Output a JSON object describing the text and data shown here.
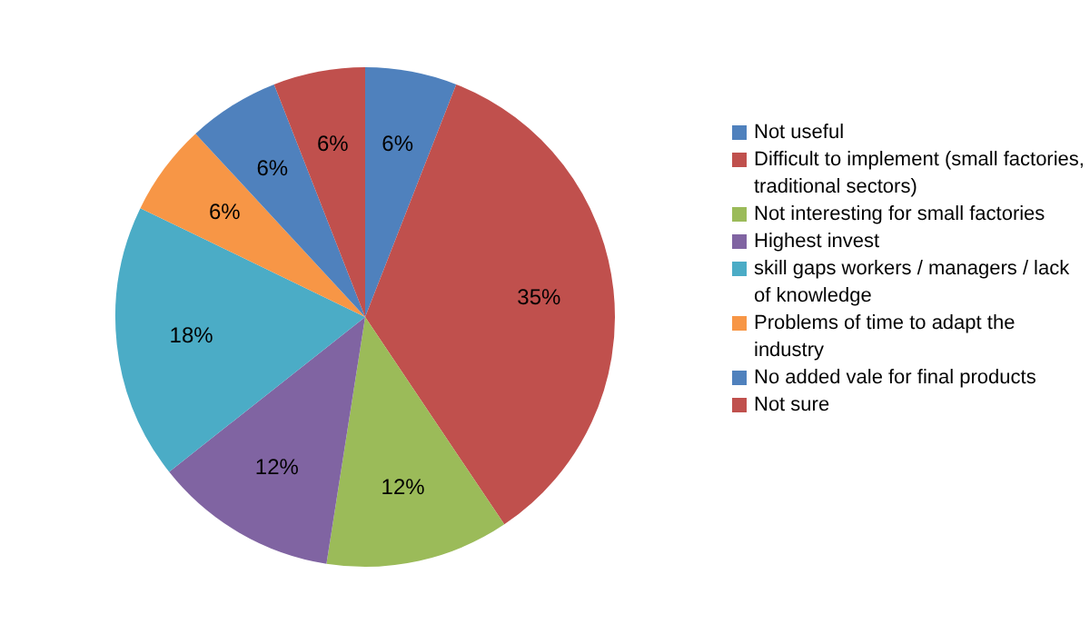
{
  "chart_data": {
    "type": "pie",
    "categories": [
      "Not useful",
      "Difficult to implement (small factories, traditional sectors)",
      "Not interesting for small factories",
      "Highest invest",
      "skill gaps workers / managers / lack of knowledge",
      "Problems of time to adapt the industry",
      "No added vale for final products",
      "Not sure"
    ],
    "values": [
      6,
      35,
      12,
      12,
      18,
      6,
      6,
      6
    ],
    "value_labels": [
      "6%",
      "35%",
      "12%",
      "12%",
      "18%",
      "6%",
      "6%",
      "6%"
    ],
    "colors": [
      "#4f81bd",
      "#c0504d",
      "#9bbb59",
      "#8064a2",
      "#4bacc6",
      "#f79646",
      "#4f81bd",
      "#c0504d"
    ],
    "legend": "right"
  }
}
